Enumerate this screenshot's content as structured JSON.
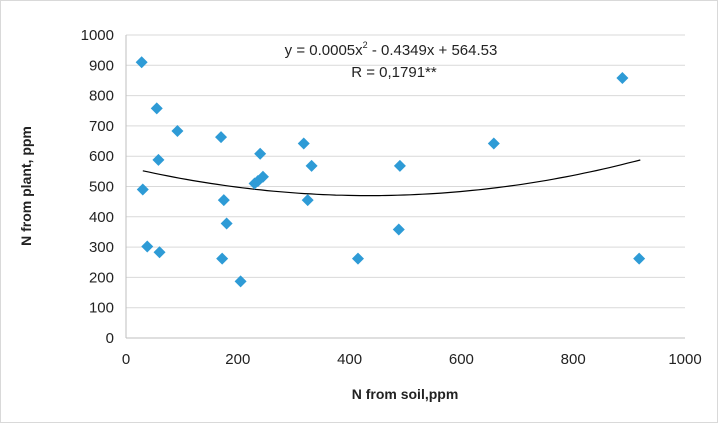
{
  "chart_data": {
    "type": "scatter",
    "title": "",
    "xlabel": "N from soil,ppm",
    "ylabel": "N from plant, ppm",
    "xlim": [
      0,
      1000
    ],
    "ylim": [
      0,
      1000
    ],
    "xticks": [
      0,
      200,
      400,
      600,
      800,
      1000
    ],
    "yticks": [
      0,
      100,
      200,
      300,
      400,
      500,
      600,
      700,
      800,
      900,
      1000
    ],
    "grid": "horizontal",
    "marker_color": "#2e9bd6",
    "trendline": {
      "kind": "polynomial-2",
      "coefficients": {
        "a": 0.0005,
        "b": -0.4349,
        "c": 564.53
      },
      "x_range": [
        30,
        920
      ],
      "equation_text": "y = 0.0005x",
      "equation_sup": "2",
      "equation_rest": " - 0.4349x + 564.53",
      "r_text": "R = 0,1791**"
    },
    "series": [
      {
        "points": [
          [
            28,
            910
          ],
          [
            30,
            490
          ],
          [
            38,
            302
          ],
          [
            55,
            758
          ],
          [
            58,
            588
          ],
          [
            60,
            283
          ],
          [
            92,
            683
          ],
          [
            170,
            663
          ],
          [
            172,
            262
          ],
          [
            175,
            455
          ],
          [
            180,
            378
          ],
          [
            205,
            187
          ],
          [
            230,
            510
          ],
          [
            236,
            518
          ],
          [
            240,
            608
          ],
          [
            245,
            532
          ],
          [
            318,
            642
          ],
          [
            325,
            455
          ],
          [
            332,
            568
          ],
          [
            415,
            262
          ],
          [
            488,
            358
          ],
          [
            490,
            568
          ],
          [
            658,
            642
          ],
          [
            888,
            858
          ],
          [
            918,
            262
          ]
        ]
      }
    ]
  }
}
